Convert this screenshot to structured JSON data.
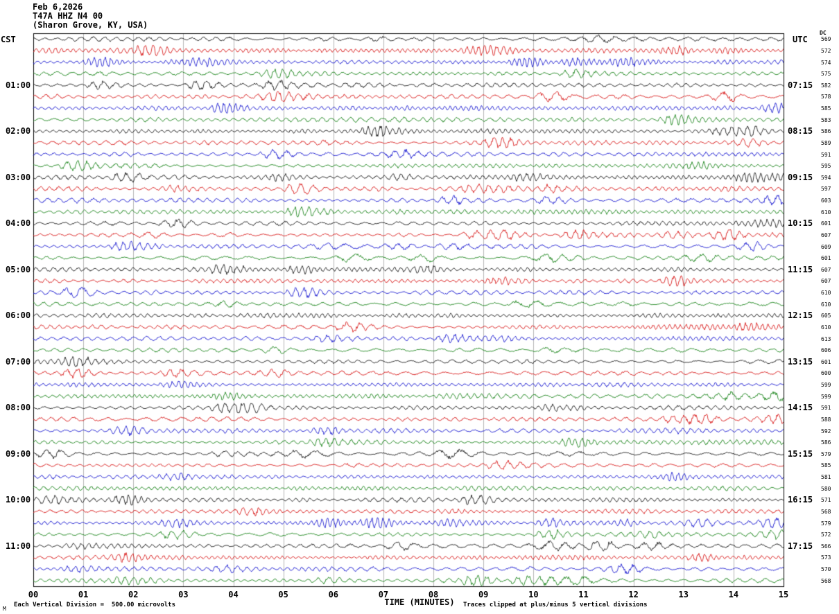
{
  "header": {
    "date": "Feb 6,2026",
    "station": "T47A HHZ N4 00",
    "location": "(Sharon Grove, KY, USA)"
  },
  "axes": {
    "left_title": "CST",
    "right_title": "UTC",
    "dc_title": "DC"
  },
  "footer": {
    "left": "Each Vertical Division =  500.00 microvolts",
    "right": "Traces clipped at plus/minus 5 vertical divisions"
  },
  "corner_mark": "M",
  "chart_data": {
    "type": "line",
    "variant": "helicorder-seismogram",
    "title": "T47A HHZ N4 00 (Sharon Grove, KY, USA) Feb 6,2026",
    "xlabel": "TIME (MINUTES)",
    "x_range": [
      0,
      15
    ],
    "x_ticks": [
      "00",
      "01",
      "02",
      "03",
      "04",
      "05",
      "06",
      "07",
      "08",
      "09",
      "10",
      "11",
      "12",
      "13",
      "14",
      "15"
    ],
    "rows": 48,
    "traces_per_hour": 4,
    "row_duration_minutes": 15,
    "grid": "vertical lines at each minute",
    "legend_position": "none",
    "trace_color_cycle": [
      "#000000",
      "#d40000",
      "#0000cc",
      "#007700"
    ],
    "left_hour_labels_cst": [
      "01:00",
      "02:00",
      "03:00",
      "04:00",
      "05:00",
      "06:00",
      "07:00",
      "08:00",
      "09:00",
      "10:00",
      "11:00"
    ],
    "right_hour_labels_utc": [
      "07:15",
      "08:15",
      "09:15",
      "10:15",
      "11:15",
      "12:15",
      "13:15",
      "14:15",
      "15:15",
      "16:15",
      "17:15"
    ],
    "dc_offsets": [
      569,
      572,
      574,
      575,
      582,
      578,
      585,
      583,
      586,
      589,
      591,
      595,
      594,
      597,
      603,
      610,
      601,
      607,
      609,
      601,
      607,
      607,
      610,
      610,
      605,
      610,
      613,
      606,
      601,
      600,
      599,
      599,
      591,
      588,
      592,
      586,
      579,
      585,
      581,
      580,
      571,
      568,
      579,
      572,
      566,
      573,
      570,
      568
    ],
    "amplitude_scale": "Each Vertical Division =  500.00 microvolts",
    "clipping": "Traces clipped at plus/minus 5 vertical divisions",
    "waveform": "continuous microseismic background noise (~1 division peak-to-peak) with scattered small bursts; individual sample values not resolvable at this scale (synthesized noise)"
  }
}
